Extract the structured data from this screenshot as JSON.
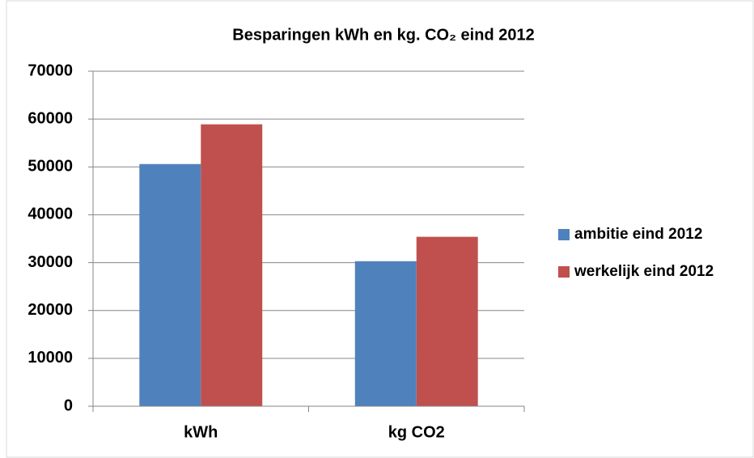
{
  "chart_data": {
    "type": "bar",
    "title": "Besparingen kWh en kg. CO₂ eind 2012",
    "categories": [
      "kWh",
      "kg CO2"
    ],
    "series": [
      {
        "name": "ambitie eind 2012",
        "color": "#4f81bd",
        "values": [
          50600,
          30300
        ]
      },
      {
        "name": "werkelijk eind 2012",
        "color": "#c0504d",
        "values": [
          58900,
          35400
        ]
      }
    ],
    "ylim": [
      0,
      70000
    ],
    "yticks": [
      0,
      10000,
      20000,
      30000,
      40000,
      50000,
      60000,
      70000
    ],
    "grid": true,
    "legend": "right"
  }
}
